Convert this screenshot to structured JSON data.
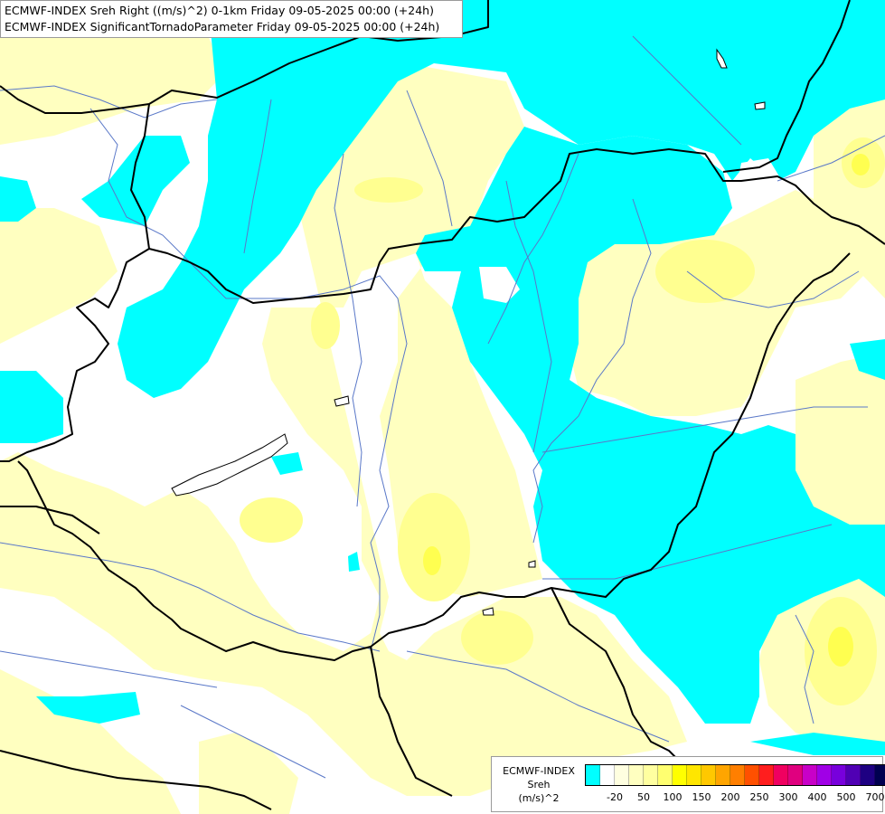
{
  "header": {
    "line1": "ECMWF-INDEX Sreh Right ((m/s)^2) 0-1km Friday 09-05-2025 00:00 (+24h)",
    "line2": "ECMWF-INDEX SignificantTornadoParameter Friday 09-05-2025 00:00 (+24h)"
  },
  "legend": {
    "source": "ECMWF-INDEX",
    "parameter": "Sreh",
    "unit": "(m/s)^2",
    "colors": [
      "#00ffff",
      "#ffffff",
      "#ffffe0",
      "#ffffc0",
      "#ffffa0",
      "#ffff70",
      "#ffff00",
      "#ffe600",
      "#ffc800",
      "#ffa500",
      "#ff7f00",
      "#ff5000",
      "#ff1e1e",
      "#f00060",
      "#e0007f",
      "#c800c8",
      "#a000e6",
      "#7800dc",
      "#5000b4",
      "#1e0082",
      "#000050"
    ],
    "ticks": [
      {
        "label": "-20",
        "index": 1
      },
      {
        "label": "50",
        "index": 3
      },
      {
        "label": "100",
        "index": 5
      },
      {
        "label": "150",
        "index": 7
      },
      {
        "label": "200",
        "index": 9
      },
      {
        "label": "250",
        "index": 11
      },
      {
        "label": "300",
        "index": 13
      },
      {
        "label": "400",
        "index": 15
      },
      {
        "label": "500",
        "index": 17
      },
      {
        "label": "700",
        "index": 19
      }
    ]
  },
  "map": {
    "fill_colors": {
      "low": "#00ffff",
      "zero": "#ffffff",
      "pale": "#ffffc0",
      "light": "#ffff90",
      "yellow": "#ffff50"
    },
    "border_color": "#000000",
    "river_color": "#5a78c8"
  }
}
